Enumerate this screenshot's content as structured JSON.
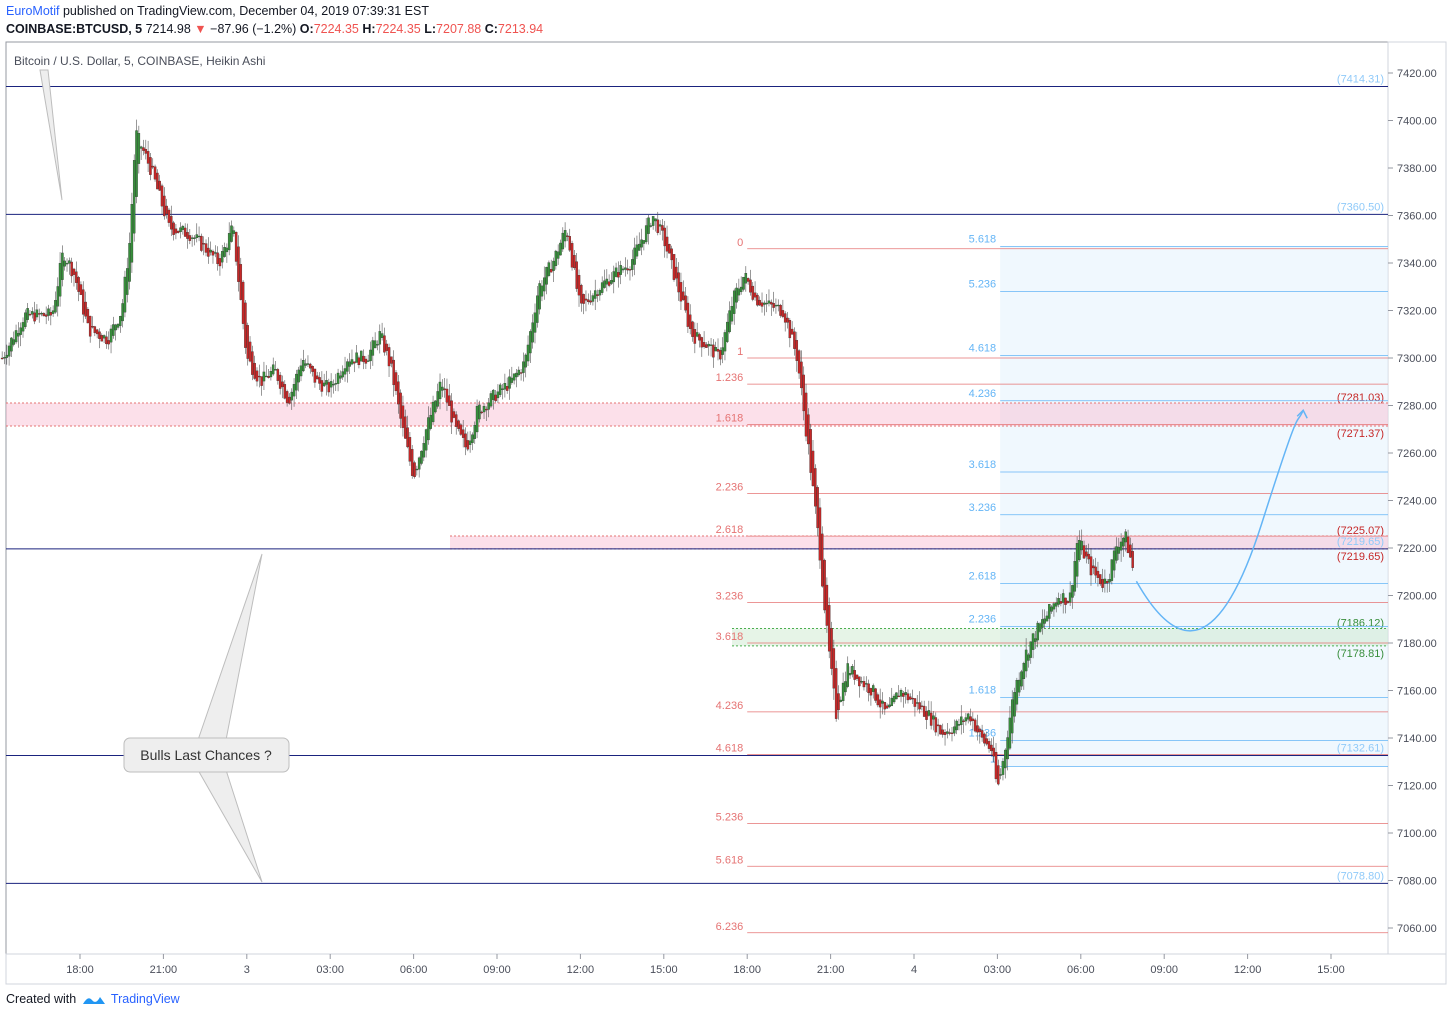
{
  "header": {
    "author": "EuroMotif",
    "published": "published on TradingView.com, December 04, 2019 07:39:31 EST",
    "symbol": "COINBASE:BTCUSD, 5",
    "last": "7214.98",
    "change": "−87.96 (−1.2%)",
    "o_label": "O:",
    "o_value": "7224.35",
    "h_label": "H:",
    "h_value": "7224.35",
    "l_label": "L:",
    "l_value": "7207.88",
    "c_label": "C:",
    "c_value": "7213.94"
  },
  "footer": {
    "created": "Created with",
    "brand": "TradingView"
  },
  "chart_data": {
    "type": "candlestick",
    "title": "Bitcoin / U.S. Dollar, 5, COINBASE, Heikin Ashi",
    "ylim": [
      7045,
      7430
    ],
    "y_ticks": [
      7060,
      7080,
      7100,
      7120,
      7140,
      7160,
      7180,
      7200,
      7220,
      7240,
      7260,
      7280,
      7300,
      7320,
      7340,
      7360,
      7380,
      7400,
      7420
    ],
    "x_ticks": [
      {
        "label": "18:00",
        "hour": 18
      },
      {
        "label": "21:00",
        "hour": 21
      },
      {
        "label": "3",
        "hour": 24
      },
      {
        "label": "03:00",
        "hour": 27
      },
      {
        "label": "06:00",
        "hour": 30
      },
      {
        "label": "09:00",
        "hour": 33
      },
      {
        "label": "12:00",
        "hour": 36
      },
      {
        "label": "15:00",
        "hour": 39
      },
      {
        "label": "18:00",
        "hour": 42
      },
      {
        "label": "21:00",
        "hour": 45
      },
      {
        "label": "4",
        "hour": 48
      },
      {
        "label": "03:00",
        "hour": 51
      },
      {
        "label": "06:00",
        "hour": 54
      },
      {
        "label": "09:00",
        "hour": 57
      },
      {
        "label": "12:00",
        "hour": 60
      },
      {
        "label": "15:00",
        "hour": 63
      }
    ],
    "price_path": [
      [
        15.2,
        7300
      ],
      [
        16.0,
        7318
      ],
      [
        17.0,
        7318
      ],
      [
        17.4,
        7345
      ],
      [
        17.8,
        7335
      ],
      [
        18.3,
        7312
      ],
      [
        19.0,
        7308
      ],
      [
        19.5,
        7320
      ],
      [
        19.8,
        7350
      ],
      [
        20.0,
        7395
      ],
      [
        20.6,
        7378
      ],
      [
        21.2,
        7355
      ],
      [
        22.0,
        7352
      ],
      [
        22.6,
        7345
      ],
      [
        23.0,
        7340
      ],
      [
        23.5,
        7355
      ],
      [
        24.0,
        7300
      ],
      [
        24.5,
        7290
      ],
      [
        25.0,
        7295
      ],
      [
        25.5,
        7282
      ],
      [
        26.0,
        7300
      ],
      [
        26.5,
        7290
      ],
      [
        27.0,
        7287
      ],
      [
        27.6,
        7300
      ],
      [
        28.3,
        7300
      ],
      [
        28.8,
        7310
      ],
      [
        29.2,
        7295
      ],
      [
        29.6,
        7270
      ],
      [
        30.0,
        7250
      ],
      [
        30.4,
        7268
      ],
      [
        31.0,
        7290
      ],
      [
        31.5,
        7270
      ],
      [
        31.9,
        7262
      ],
      [
        32.3,
        7278
      ],
      [
        33.0,
        7285
      ],
      [
        33.5,
        7290
      ],
      [
        34.0,
        7298
      ],
      [
        34.5,
        7330
      ],
      [
        35.0,
        7340
      ],
      [
        35.5,
        7355
      ],
      [
        36.0,
        7320
      ],
      [
        36.5,
        7328
      ],
      [
        37.2,
        7335
      ],
      [
        37.8,
        7340
      ],
      [
        38.2,
        7350
      ],
      [
        38.6,
        7360
      ],
      [
        39.0,
        7350
      ],
      [
        39.5,
        7330
      ],
      [
        40.0,
        7310
      ],
      [
        40.6,
        7305
      ],
      [
        41.0,
        7300
      ],
      [
        41.5,
        7325
      ],
      [
        41.9,
        7335
      ],
      [
        42.3,
        7325
      ],
      [
        42.8,
        7322
      ],
      [
        43.3,
        7320
      ],
      [
        43.8,
        7300
      ],
      [
        44.2,
        7262
      ],
      [
        44.6,
        7220
      ],
      [
        44.9,
        7180
      ],
      [
        45.2,
        7150
      ],
      [
        45.6,
        7170
      ],
      [
        46.0,
        7165
      ],
      [
        46.5,
        7160
      ],
      [
        47.0,
        7150
      ],
      [
        47.5,
        7160
      ],
      [
        48.0,
        7155
      ],
      [
        48.5,
        7150
      ],
      [
        49.0,
        7142
      ],
      [
        49.5,
        7145
      ],
      [
        50.0,
        7150
      ],
      [
        50.4,
        7140
      ],
      [
        50.8,
        7135
      ],
      [
        51.0,
        7118
      ],
      [
        51.2,
        7130
      ],
      [
        51.6,
        7160
      ],
      [
        52.0,
        7175
      ],
      [
        52.4,
        7185
      ],
      [
        52.8,
        7192
      ],
      [
        53.2,
        7200
      ],
      [
        53.6,
        7198
      ],
      [
        53.9,
        7225
      ],
      [
        54.1,
        7218
      ],
      [
        54.4,
        7210
      ],
      [
        54.8,
        7205
      ],
      [
        55.0,
        7208
      ],
      [
        55.3,
        7222
      ],
      [
        55.6,
        7225
      ],
      [
        55.9,
        7210
      ]
    ],
    "horizontal_levels": [
      {
        "label": "(7414.31)",
        "price": 7414.31
      },
      {
        "label": "(7360.50)",
        "price": 7360.5
      },
      {
        "label": "(7219.65)",
        "price": 7219.65
      },
      {
        "label": "(7132.61)",
        "price": 7132.61
      },
      {
        "label": "(7078.80)",
        "price": 7078.8
      }
    ],
    "zones": [
      {
        "top_label": "(7281.03)",
        "top": 7281.03,
        "bottom_label": "(7271.37)",
        "bottom": 7271.37,
        "color": "#f8bbd0"
      },
      {
        "top_label": "(7225.07)",
        "top": 7225.07,
        "bottom_label": "(7219.65)",
        "bottom": 7219.65,
        "color": "#f8bbd0"
      },
      {
        "top_label": "(7186.12)",
        "top": 7186.12,
        "bottom_label": "(7178.81)",
        "bottom": 7178.81,
        "color": "#c8e6c9"
      }
    ],
    "fib_red": {
      "label_hour": 42.2,
      "start_hour": 42.0,
      "levels": [
        {
          "ratio": "0",
          "price": 7346
        },
        {
          "ratio": "1",
          "price": 7300
        },
        {
          "ratio": "1.236",
          "price": 7289
        },
        {
          "ratio": "1.618",
          "price": 7272
        },
        {
          "ratio": "2.236",
          "price": 7243
        },
        {
          "ratio": "2.618",
          "price": 7225
        },
        {
          "ratio": "3.236",
          "price": 7197
        },
        {
          "ratio": "3.618",
          "price": 7180
        },
        {
          "ratio": "4.236",
          "price": 7151
        },
        {
          "ratio": "4.618",
          "price": 7133
        },
        {
          "ratio": "5.236",
          "price": 7104
        },
        {
          "ratio": "5.618",
          "price": 7086
        },
        {
          "ratio": "6.236",
          "price": 7058
        }
      ]
    },
    "fib_blue": {
      "start_hour": 51.1,
      "levels": [
        {
          "ratio": "5.618",
          "price": 7347
        },
        {
          "ratio": "5.236",
          "price": 7328
        },
        {
          "ratio": "4.618",
          "price": 7301
        },
        {
          "ratio": "4.236",
          "price": 7282
        },
        {
          "ratio": "3.618",
          "price": 7252
        },
        {
          "ratio": "3.236",
          "price": 7234
        },
        {
          "ratio": "2.618",
          "price": 7205
        },
        {
          "ratio": "2.236",
          "price": 7187
        },
        {
          "ratio": "1.618",
          "price": 7157
        },
        {
          "ratio": "1.236",
          "price": 7139
        },
        {
          "ratio": "1",
          "price": 7128
        }
      ]
    },
    "forecast_curve": [
      [
        56.0,
        7206
      ],
      [
        57.5,
        7185
      ],
      [
        59.0,
        7185
      ],
      [
        60.5,
        7230
      ],
      [
        62.0,
        7278
      ]
    ],
    "annotation": "Bulls Last Chances ?"
  }
}
